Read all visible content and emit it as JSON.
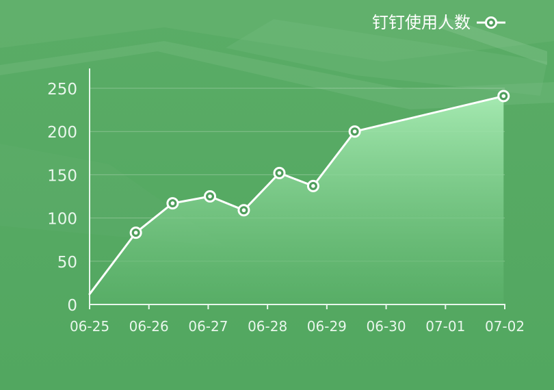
{
  "chart_data": {
    "type": "area",
    "title": "",
    "legend": {
      "label": "钉钉使用人数",
      "position": "top-right",
      "marker": "ring-dot-icon"
    },
    "x_categories": [
      "06-25",
      "06-26",
      "06-27",
      "06-28",
      "06-29",
      "06-30",
      "07-01",
      "07-02"
    ],
    "x_range": [
      0,
      7
    ],
    "ylim": [
      0,
      250
    ],
    "y_ticks": [
      0,
      50,
      100,
      150,
      200,
      250
    ],
    "grid": true,
    "xlabel": "",
    "ylabel": "",
    "series": [
      {
        "name": "钉钉使用人数",
        "points": [
          {
            "x": 0.0,
            "y": 12,
            "marker": false
          },
          {
            "x": 0.78,
            "y": 83,
            "marker": true
          },
          {
            "x": 1.4,
            "y": 117,
            "marker": true
          },
          {
            "x": 2.03,
            "y": 125,
            "marker": true
          },
          {
            "x": 2.6,
            "y": 109,
            "marker": true
          },
          {
            "x": 3.2,
            "y": 152,
            "marker": true
          },
          {
            "x": 3.77,
            "y": 137,
            "marker": true
          },
          {
            "x": 4.47,
            "y": 200,
            "marker": true
          },
          {
            "x": 6.98,
            "y": 241,
            "marker": true
          }
        ]
      }
    ],
    "colors": {
      "background": "#55a963",
      "line": "#ffffff",
      "fill_top": "#a8ecb4",
      "fill_bottom": "#5bb26a",
      "axis": "#e9f7ec",
      "grid": "rgba(255,255,255,0.28)",
      "marker_fill": "#4f9e5c"
    }
  }
}
